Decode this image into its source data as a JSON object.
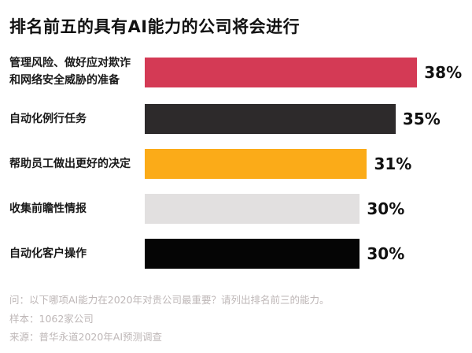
{
  "title": "排名前五的具有AI能力的公司将会进行",
  "chart_data": {
    "type": "bar",
    "orientation": "horizontal",
    "title": "排名前五的具有AI能力的公司将会进行",
    "categories": [
      "管理风险、做好应对欺诈\n和网络安全威胁的准备",
      "自动化例行任务",
      "帮助员工做出更好的决定",
      "收集前瞻性情报",
      "自动化客户操作"
    ],
    "values": [
      38,
      35,
      31,
      30,
      30
    ],
    "value_labels": [
      "38%",
      "35%",
      "31%",
      "30%",
      "30%"
    ],
    "colors": [
      "#d43a55",
      "#2d2a2b",
      "#fbab18",
      "#e2e0e0",
      "#050505"
    ],
    "xlim": [
      0,
      40
    ],
    "grid": false,
    "legend": "none"
  },
  "footer": {
    "question": "问：以下哪项AI能力在2020年对贵公司最重要？请列出排名前三的能力。",
    "sample": "样本：1062家公司",
    "source": "来源：普华永道2020年AI预测调查"
  }
}
